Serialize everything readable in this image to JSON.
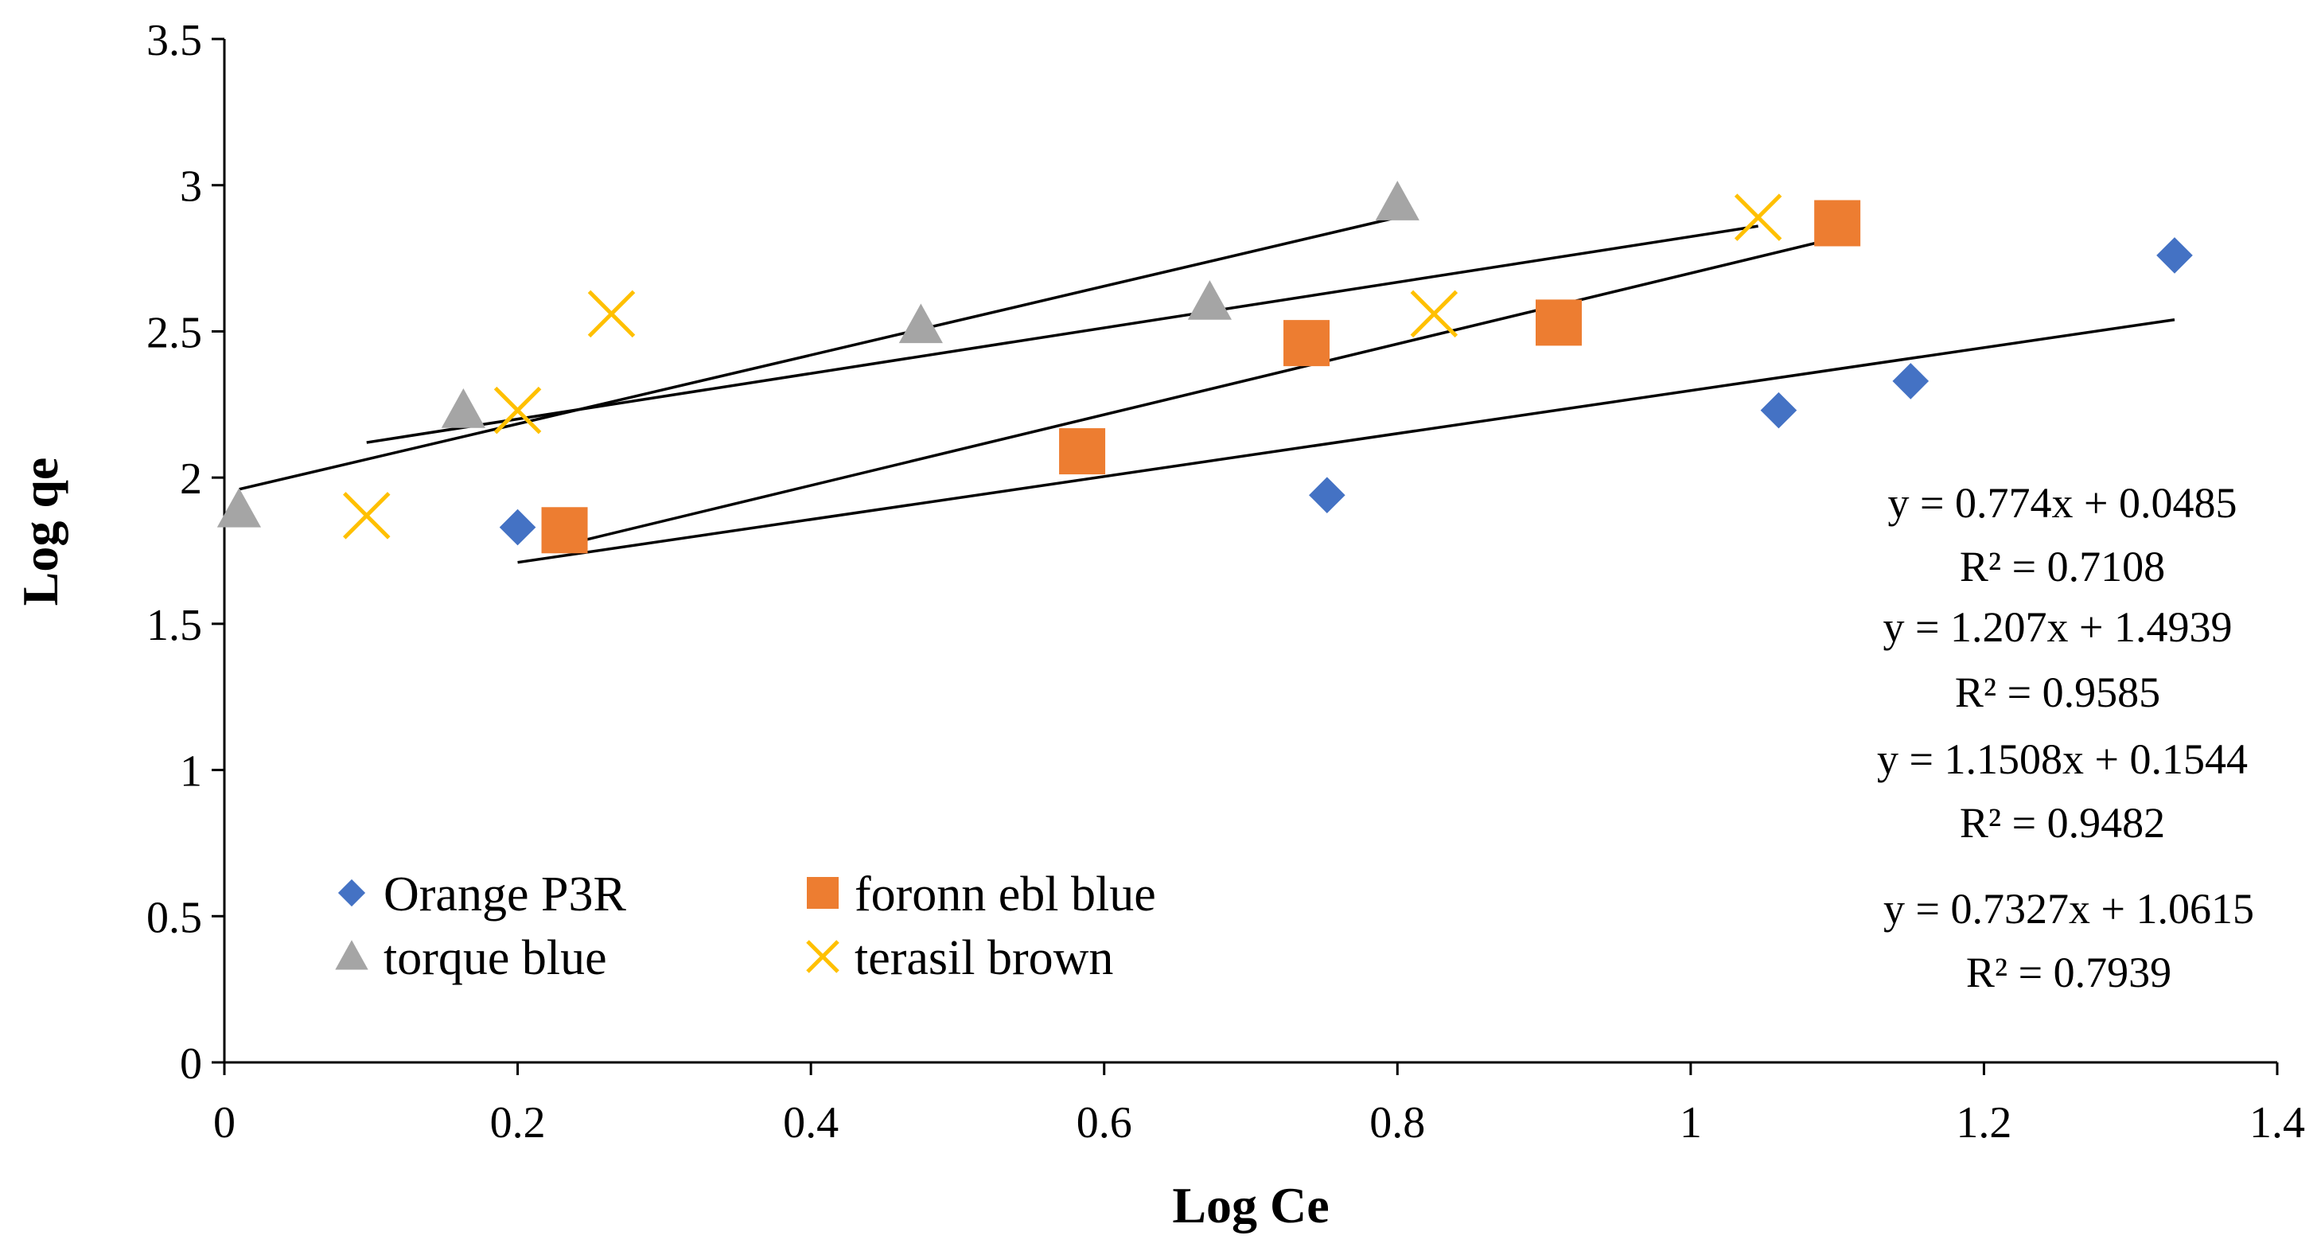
{
  "chart_data": {
    "type": "scatter",
    "title": "",
    "xlabel": "Log Ce",
    "ylabel": "Log qe",
    "xlim": [
      0,
      1.4
    ],
    "ylim": [
      0,
      3.5
    ],
    "x_ticks": [
      "0",
      "0.2",
      "0.4",
      "0.6",
      "0.8",
      "1",
      "1.2",
      "1.4"
    ],
    "y_ticks": [
      "0",
      "0.5",
      "1",
      "1.5",
      "2",
      "2.5",
      "3",
      "3.5"
    ],
    "grid": false,
    "legend_position": "bottom-left",
    "series": [
      {
        "name": "Orange P3R",
        "marker": "diamond",
        "color": "#4472C4",
        "points": [
          [
            0.2,
            1.83
          ],
          [
            0.752,
            1.94
          ],
          [
            1.06,
            2.23
          ],
          [
            1.15,
            2.33
          ],
          [
            1.33,
            2.76
          ]
        ],
        "trendline": [
          [
            0.2,
            1.71
          ],
          [
            1.33,
            2.54
          ]
        ]
      },
      {
        "name": "foronn ebl blue",
        "marker": "square",
        "color": "#ED7D31",
        "points": [
          [
            0.232,
            1.82
          ],
          [
            0.585,
            2.09
          ],
          [
            0.738,
            2.46
          ],
          [
            0.91,
            2.53
          ],
          [
            1.1,
            2.87
          ]
        ],
        "trendline": [
          [
            0.232,
            1.77
          ],
          [
            1.1,
            2.82
          ]
        ]
      },
      {
        "name": "torque blue",
        "marker": "triangle",
        "color": "#A5A5A5",
        "points": [
          [
            0.01,
            1.89
          ],
          [
            0.163,
            2.23
          ],
          [
            0.475,
            2.52
          ],
          [
            0.672,
            2.6
          ],
          [
            0.8,
            2.94
          ]
        ],
        "trendline": [
          [
            0.01,
            1.96
          ],
          [
            0.8,
            2.89
          ]
        ]
      },
      {
        "name": "terasil brown",
        "marker": "x",
        "color": "#FFC000",
        "points": [
          [
            0.097,
            1.87
          ],
          [
            0.2,
            2.23
          ],
          [
            0.264,
            2.56
          ],
          [
            0.825,
            2.56
          ],
          [
            1.046,
            2.89
          ]
        ],
        "trendline": [
          [
            0.097,
            2.12
          ],
          [
            1.046,
            2.86
          ]
        ]
      }
    ],
    "annotations": [
      "y = 0.774x + 0.0485",
      "R² = 0.7108",
      "y = 1.207x + 1.4939",
      "R² = 0.9585",
      "y = 1.1508x + 0.1544",
      "R² = 0.9482",
      "y = 0.7327x + 1.0615",
      "R² = 0.7939"
    ]
  }
}
